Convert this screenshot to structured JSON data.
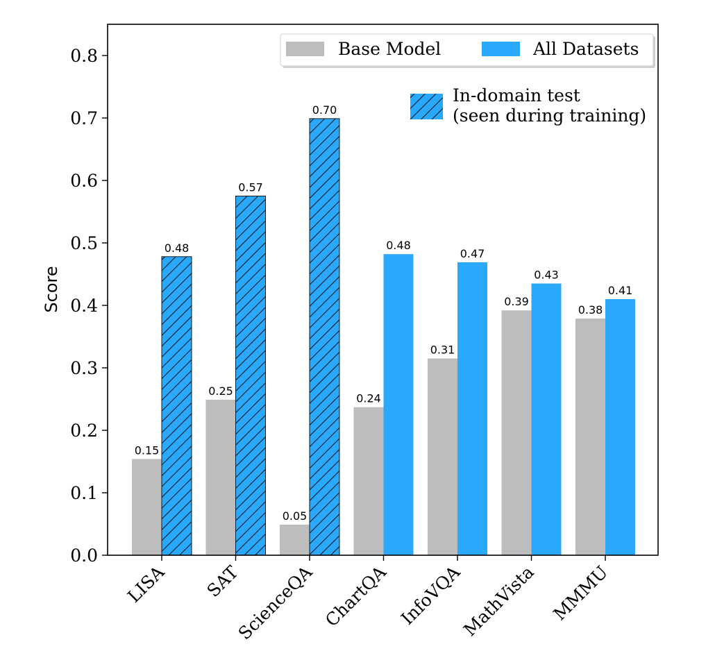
{
  "chart_data": {
    "type": "bar",
    "categories": [
      "LISA",
      "SAT",
      "ScienceQA",
      "ChartQA",
      "InfoVQA",
      "MathVista",
      "MMMU"
    ],
    "series": [
      {
        "name": "Base Model",
        "values": [
          0.154,
          0.249,
          0.049,
          0.237,
          0.315,
          0.392,
          0.379
        ],
        "labels": [
          "0.15",
          "0.25",
          "0.05",
          "0.24",
          "0.31",
          "0.39",
          "0.38"
        ],
        "color": "#bdbdbd"
      },
      {
        "name": "All Datasets",
        "values": [
          0.478,
          0.575,
          0.699,
          0.482,
          0.469,
          0.435,
          0.41
        ],
        "labels": [
          "0.48",
          "0.57",
          "0.70",
          "0.48",
          "0.47",
          "0.43",
          "0.41"
        ],
        "color": "#2aa8fb"
      }
    ],
    "hatched_categories": [
      "LISA",
      "SAT",
      "ScienceQA"
    ],
    "hatch_legend": {
      "line1": "In-domain test",
      "line2": "(seen during training)"
    },
    "ylabel": "Score",
    "ylim": [
      0,
      0.85
    ],
    "yticks": [
      "0.0",
      "0.1",
      "0.2",
      "0.3",
      "0.4",
      "0.5",
      "0.6",
      "0.7",
      "0.8"
    ],
    "grid": false,
    "legend_position": "top-right"
  }
}
